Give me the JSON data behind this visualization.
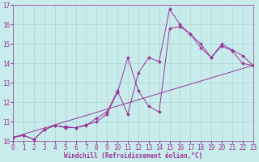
{
  "xlabel": "Windchill (Refroidissement éolien,°C)",
  "ylabel": "",
  "bg_color": "#c8ecec",
  "line_color": "#993399",
  "grid_color": "#aacccc",
  "xlim": [
    0,
    23
  ],
  "ylim": [
    10,
    17
  ],
  "yticks": [
    10,
    11,
    12,
    13,
    14,
    15,
    16,
    17
  ],
  "xticks": [
    0,
    1,
    2,
    3,
    4,
    5,
    6,
    7,
    8,
    9,
    10,
    11,
    12,
    13,
    14,
    15,
    16,
    17,
    18,
    19,
    20,
    21,
    22,
    23
  ],
  "series1": {
    "x": [
      0,
      1,
      2,
      3,
      4,
      5,
      6,
      7,
      8,
      9,
      10,
      11,
      12,
      13,
      14,
      15,
      16,
      17,
      18,
      19,
      20,
      21,
      22,
      23
    ],
    "y": [
      10.2,
      10.3,
      10.1,
      10.6,
      10.8,
      10.7,
      10.7,
      10.8,
      11.2,
      11.5,
      12.6,
      11.4,
      13.5,
      14.3,
      14.1,
      16.8,
      16.0,
      15.5,
      15.0,
      14.3,
      15.0,
      14.7,
      14.4,
      13.9
    ]
  },
  "series2": {
    "x": [
      0,
      1,
      2,
      3,
      4,
      5,
      6,
      7,
      8,
      9,
      10,
      11,
      12,
      13,
      14,
      15,
      16,
      17,
      18,
      19,
      20,
      21,
      22,
      23
    ],
    "y": [
      10.2,
      10.3,
      10.1,
      10.6,
      10.8,
      10.75,
      10.7,
      10.85,
      11.0,
      11.4,
      12.5,
      14.3,
      12.6,
      11.8,
      11.5,
      15.8,
      15.9,
      15.5,
      14.8,
      14.3,
      14.9,
      14.65,
      14.0,
      13.9
    ]
  },
  "series3": {
    "x": [
      0,
      23
    ],
    "y": [
      10.2,
      13.9
    ]
  },
  "tick_fontsize": 5.5,
  "xlabel_fontsize": 5.5,
  "lw": 0.7,
  "ms": 2.0
}
